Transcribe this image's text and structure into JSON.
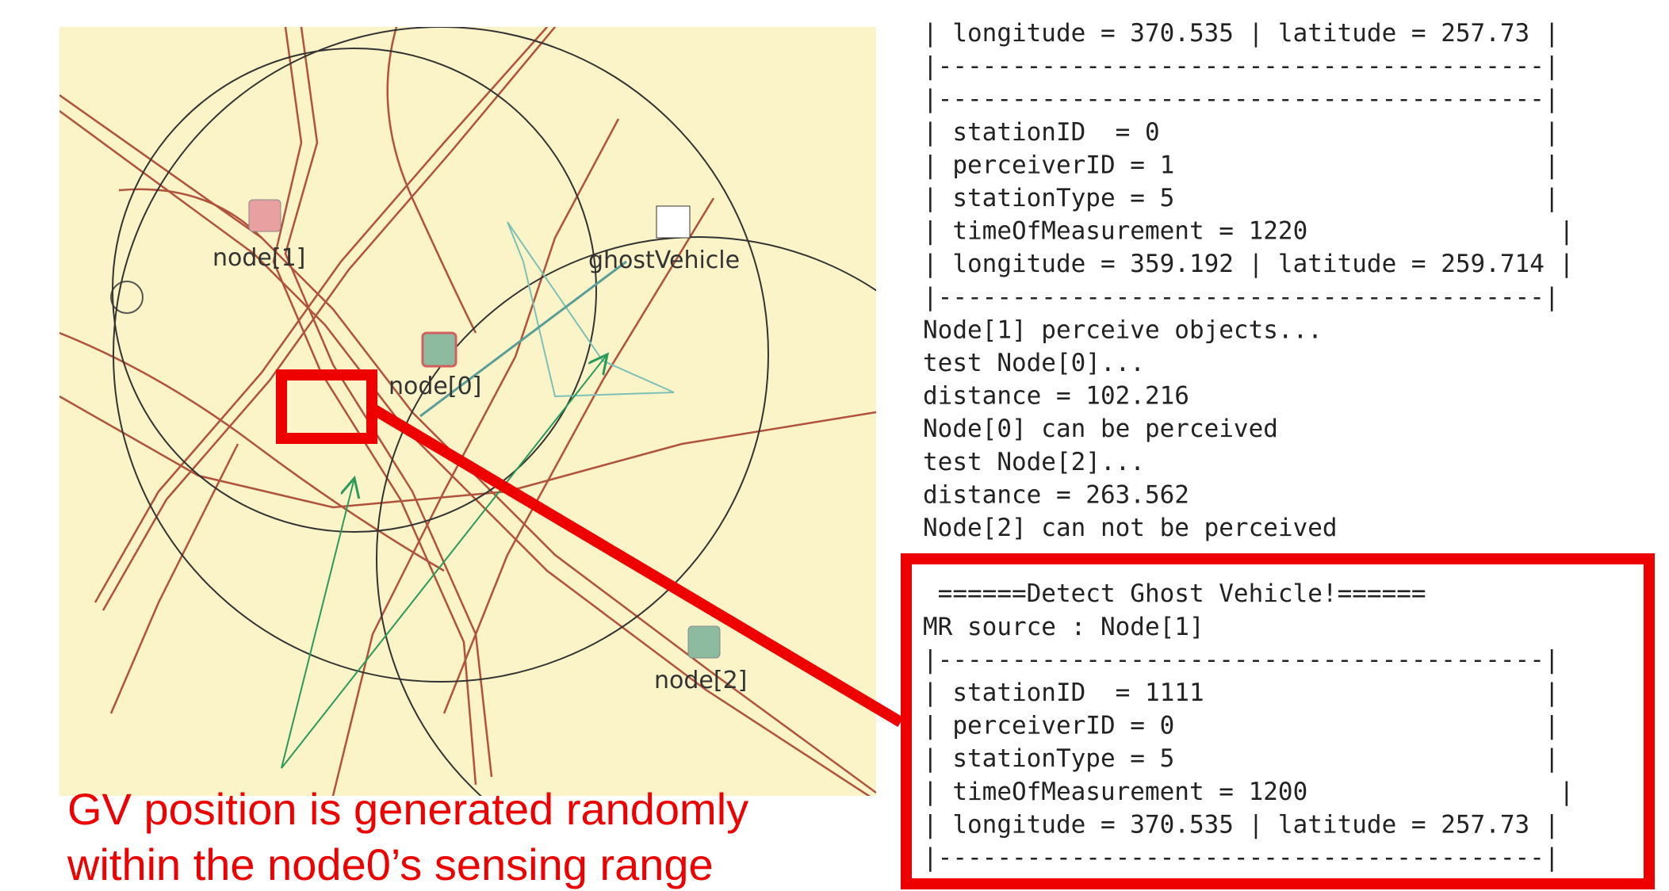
{
  "map": {
    "labels": [
      "node[1]",
      "node[0]",
      "ghostVehicle",
      "node[2]"
    ]
  },
  "caption": [
    "GV position is generated randomly",
    "within the node0’s sensing range"
  ],
  "console": {
    "lines": [
      "| longitude = 370.535 | latitude = 257.73 |",
      "|-----------------------------------------|",
      "|-----------------------------------------|",
      "| stationID  = 0                          |",
      "| perceiverID = 1                         |",
      "| stationType = 5                         |",
      "| timeOfMeasurement = 1220                 |",
      "| longitude = 359.192 | latitude = 259.714 |",
      "|-----------------------------------------|",
      "Node[1] perceive objects...",
      "test Node[0]...",
      "distance = 102.216",
      "Node[0] can be perceived",
      "test Node[2]...",
      "distance = 263.562",
      "Node[2] can not be perceived"
    ]
  },
  "highlight": {
    "lines": [
      " ======Detect Ghost Vehicle!======",
      "MR source : Node[1]",
      "|-----------------------------------------|",
      "| stationID  = 1111                       |",
      "| perceiverID = 0                         |",
      "| stationType = 5                         |",
      "| timeOfMeasurement = 1200                 |",
      "| longitude = 370.535 | latitude = 257.73 |",
      "|-----------------------------------------|"
    ]
  }
}
